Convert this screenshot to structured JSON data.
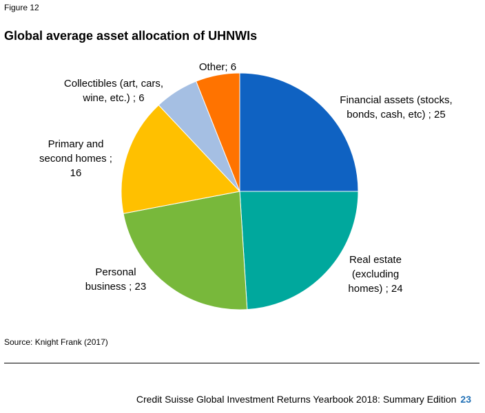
{
  "figure_label": "Figure 12",
  "source": "Source: Knight Frank (2017)",
  "footer": {
    "text": "Credit Suisse Global Investment Returns Yearbook 2018: Summary Edition",
    "page_number": "23"
  },
  "chart_data": {
    "type": "pie",
    "title": "Global average asset allocation of UHNWIs",
    "slices": [
      {
        "label_lines": [
          "Financial assets (stocks,",
          "bonds, cash, etc) ; 25"
        ],
        "value": 25,
        "color": "#0f62c2"
      },
      {
        "label_lines": [
          "Real estate",
          "(excluding",
          "homes) ; 24"
        ],
        "value": 24,
        "color": "#00a89d"
      },
      {
        "label_lines": [
          "Personal",
          "business ; 23"
        ],
        "value": 23,
        "color": "#78b83b"
      },
      {
        "label_lines": [
          "Primary and",
          "second homes ;",
          "16"
        ],
        "value": 16,
        "color": "#ffc000"
      },
      {
        "label_lines": [
          "Collectibles (art, cars,",
          "wine, etc.) ; 6"
        ],
        "value": 6,
        "color": "#a5bfe3"
      },
      {
        "label_lines": [
          "Other; 6"
        ],
        "value": 6,
        "color": "#ff7300"
      }
    ]
  }
}
